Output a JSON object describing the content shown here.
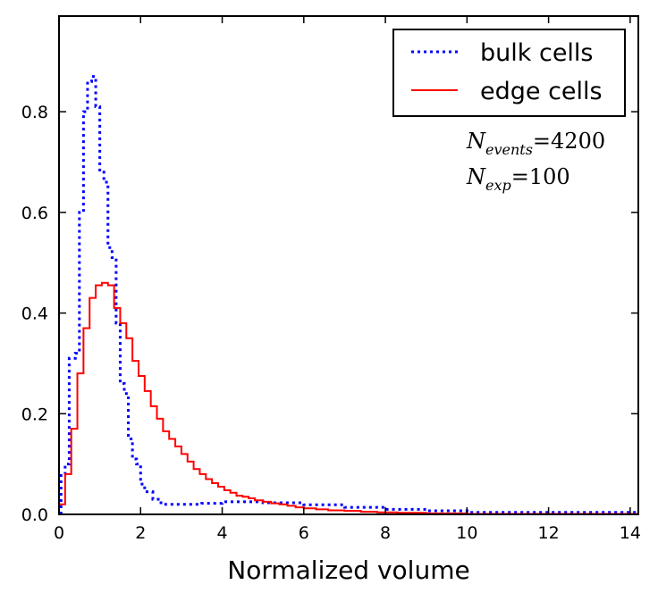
{
  "chart_data": {
    "type": "histogram-step",
    "title": "",
    "xlabel": "Normalized volume",
    "ylabel": "",
    "xlim": [
      0,
      14.2
    ],
    "ylim": [
      0,
      0.99
    ],
    "xticks": [
      0,
      2,
      4,
      6,
      8,
      10,
      12,
      14
    ],
    "xtick_labels": [
      "0",
      "2",
      "4",
      "6",
      "8",
      "10",
      "12",
      "14"
    ],
    "yticks": [
      0.0,
      0.2,
      0.4,
      0.6,
      0.8
    ],
    "ytick_labels": [
      "0.0",
      "0.2",
      "0.4",
      "0.6",
      "0.8"
    ],
    "bin_width": 0.15,
    "legend_position": "top-right",
    "series": [
      {
        "name": "bulk cells",
        "color": "#0000ff",
        "style": "dotted",
        "edges": [
          0.05,
          0.15,
          0.25,
          0.4,
          0.5,
          0.6,
          0.7,
          0.8,
          0.9,
          1.0,
          1.1,
          1.2,
          1.3,
          1.4,
          1.5,
          1.6,
          1.7,
          1.8,
          1.9,
          2.0,
          2.1,
          2.3,
          2.5,
          3.0,
          3.5,
          4.0,
          5.0,
          6.0,
          7.0,
          8.0,
          9.0,
          10.0,
          14.2
        ],
        "values": [
          0.08,
          0.1,
          0.31,
          0.32,
          0.6,
          0.8,
          0.86,
          0.87,
          0.81,
          0.68,
          0.66,
          0.53,
          0.51,
          0.38,
          0.26,
          0.24,
          0.15,
          0.11,
          0.1,
          0.06,
          0.045,
          0.03,
          0.02,
          0.02,
          0.022,
          0.025,
          0.023,
          0.019,
          0.014,
          0.01,
          0.007,
          0.004
        ]
      },
      {
        "name": "edge cells",
        "color": "#ff0000",
        "style": "solid",
        "edges": [
          0.0,
          0.15,
          0.3,
          0.45,
          0.6,
          0.75,
          0.9,
          1.05,
          1.2,
          1.35,
          1.5,
          1.65,
          1.8,
          1.95,
          2.1,
          2.25,
          2.4,
          2.55,
          2.7,
          2.85,
          3.0,
          3.15,
          3.3,
          3.45,
          3.6,
          3.75,
          3.9,
          4.05,
          4.2,
          4.35,
          4.5,
          4.65,
          4.8,
          5.0,
          5.2,
          5.4,
          5.6,
          5.8,
          6.0,
          6.3,
          6.6,
          7.0,
          7.4,
          7.8,
          8.3,
          9.0,
          10.0,
          11.0,
          12.0,
          14.2
        ],
        "values": [
          0.02,
          0.08,
          0.17,
          0.28,
          0.37,
          0.43,
          0.455,
          0.46,
          0.455,
          0.41,
          0.38,
          0.35,
          0.305,
          0.275,
          0.245,
          0.215,
          0.19,
          0.165,
          0.15,
          0.135,
          0.12,
          0.105,
          0.09,
          0.08,
          0.07,
          0.062,
          0.055,
          0.048,
          0.043,
          0.037,
          0.035,
          0.032,
          0.028,
          0.025,
          0.022,
          0.02,
          0.017,
          0.014,
          0.012,
          0.01,
          0.008,
          0.007,
          0.005,
          0.004,
          0.003,
          0.002,
          0.001,
          0.001,
          0.001
        ]
      }
    ],
    "annotations": [
      {
        "symbol": "N",
        "subscript": "events",
        "value": "4200"
      },
      {
        "symbol": "N",
        "subscript": "exp",
        "value": "100"
      }
    ]
  }
}
